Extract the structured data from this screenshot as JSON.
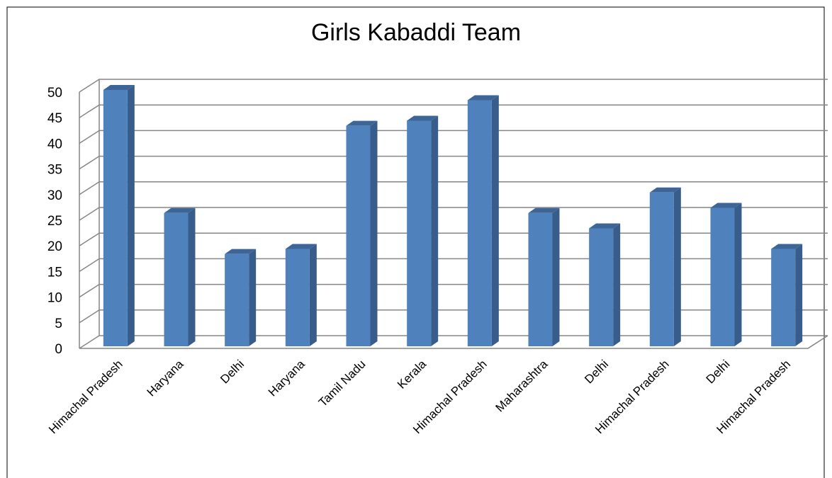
{
  "chart_data": {
    "type": "bar3d",
    "title": "Girls Kabaddi Team",
    "categories": [
      "Himachal Pradesh",
      "Haryana",
      "Delhi",
      "Haryana",
      "Tamil Nadu",
      "Kerala",
      "Himachal Pradesh",
      "Maharashtra",
      "Delhi",
      "Himachal Pradesh",
      "Delhi",
      "Himachal Pradesh"
    ],
    "values": [
      50,
      26,
      18,
      19,
      43,
      44,
      48,
      26,
      23,
      30,
      27,
      19
    ],
    "color": "#4f81bd",
    "ylim": [
      0,
      50
    ],
    "yticks": [
      0,
      5,
      10,
      15,
      20,
      25,
      30,
      35,
      40,
      45,
      50
    ],
    "grid": true
  }
}
